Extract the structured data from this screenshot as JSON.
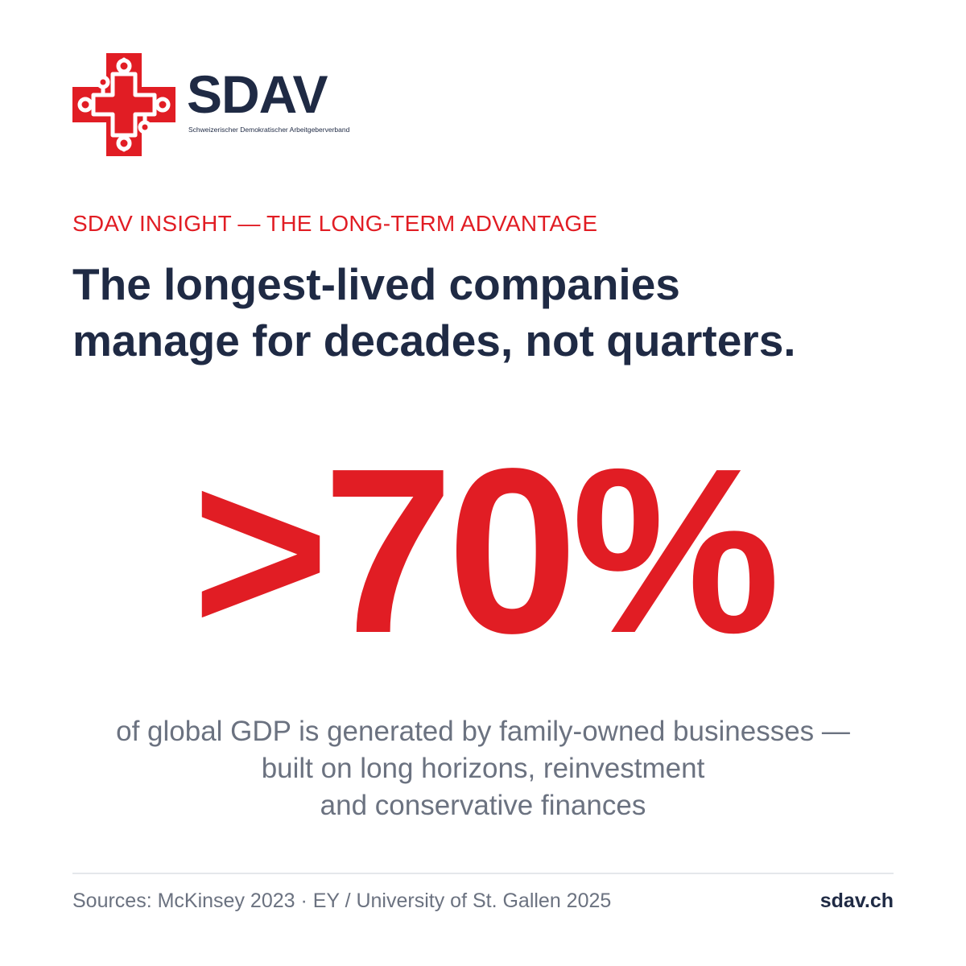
{
  "brand": {
    "name": "SDAV",
    "tagline": "Schweizerischer Demokratischer Arbeitgeberverband",
    "logo_icon": "swiss-cross-link-icon",
    "primary_color": "#e11d24",
    "text_color": "#1f2a44"
  },
  "kicker": "SDAV INSIGHT — THE LONG-TERM ADVANTAGE",
  "headline": {
    "line1": "The longest-lived companies",
    "line2": "manage for decades, not quarters."
  },
  "stat": ">70%",
  "description": {
    "line1": "of global GDP is generated by family-owned businesses —",
    "line2": "built on long horizons, reinvestment",
    "line3": "and conservative finances"
  },
  "footer": {
    "sources": "Sources: McKinsey 2023 · EY / University of St. Gallen 2025",
    "website": "sdav.ch"
  }
}
